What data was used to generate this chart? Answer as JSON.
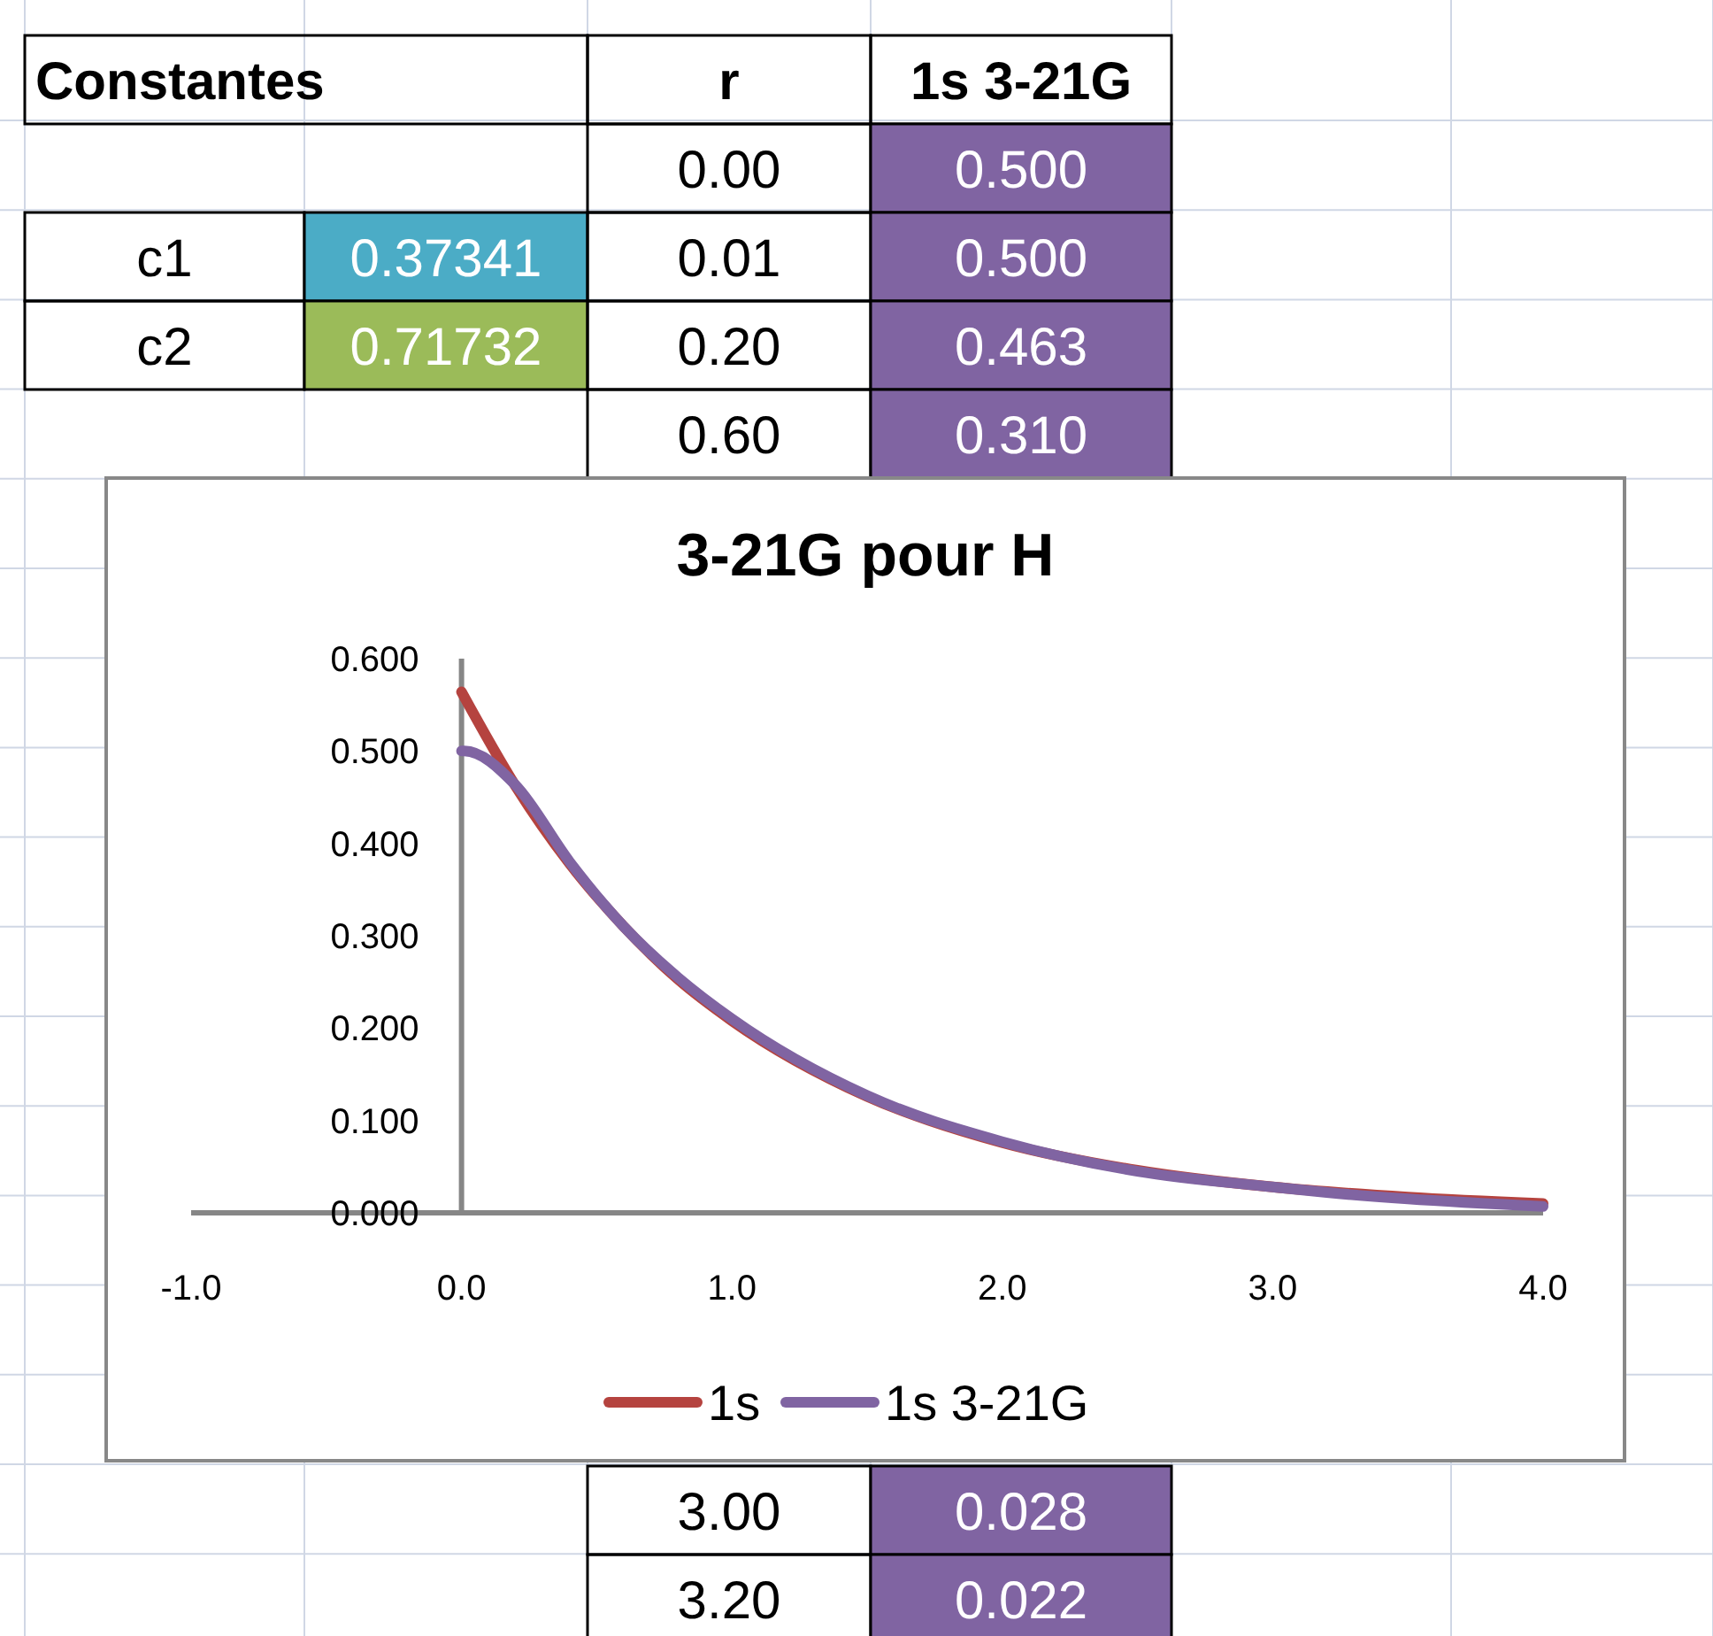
{
  "chart_data": [
    {
      "type": "other",
      "annotations": [
        "Constantes",
        "r",
        "1s 3-21G",
        "0.00",
        "0.500",
        "c1",
        "0.37341",
        "0.01",
        "0.500",
        "c2",
        "0.71732",
        "0.20",
        "0.463",
        "0.60",
        "0.310",
        "3.00",
        "0.028",
        "3.20",
        "0.022"
      ]
    },
    {
      "type": "line",
      "title": "3-21G pour H",
      "xlim": [
        -1,
        4
      ],
      "ylim": [
        0,
        0.6
      ],
      "xticks": [
        {
          "value": -1,
          "label": "-1.0"
        },
        {
          "value": 0,
          "label": "0.0"
        },
        {
          "value": 1,
          "label": "1.0"
        },
        {
          "value": 2,
          "label": "2.0"
        },
        {
          "value": 3,
          "label": "3.0"
        },
        {
          "value": 4,
          "label": "4.0"
        }
      ],
      "yticks": [
        {
          "value": 0,
          "label": "0.000"
        },
        {
          "value": 0.1,
          "label": "0.100"
        },
        {
          "value": 0.2,
          "label": "0.200"
        },
        {
          "value": 0.3,
          "label": "0.300"
        },
        {
          "value": 0.4,
          "label": "0.400"
        },
        {
          "value": 0.5,
          "label": "0.500"
        },
        {
          "value": 0.6,
          "label": "0.600"
        }
      ],
      "grid": false,
      "legend": "bottom",
      "series": [
        {
          "name": "1s",
          "color": "#b5433f",
          "x": [
            0,
            0.2,
            0.4,
            0.6,
            0.8,
            1,
            1.5,
            2,
            2.5,
            3,
            3.5,
            4
          ],
          "values": [
            0.564,
            0.462,
            0.378,
            0.31,
            0.253,
            0.208,
            0.126,
            0.076,
            0.046,
            0.028,
            0.017,
            0.01
          ]
        },
        {
          "name": "1s 3-21G",
          "color": "#8064a2",
          "x": [
            0,
            0.01,
            0.2,
            0.4,
            0.6,
            0.8,
            1,
            1.5,
            2,
            2.5,
            3,
            3.2,
            3.5,
            4
          ],
          "values": [
            0.5,
            0.5,
            0.463,
            0.38,
            0.31,
            0.255,
            0.21,
            0.127,
            0.077,
            0.045,
            0.028,
            0.022,
            0.015,
            0.007
          ]
        }
      ]
    }
  ]
}
